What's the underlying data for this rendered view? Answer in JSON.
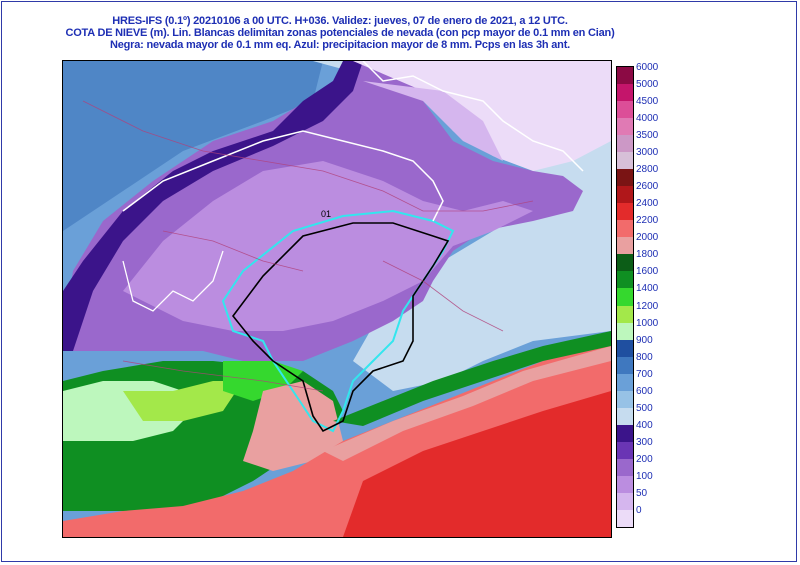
{
  "header": {
    "line1": "HRES-IFS (0.1º) 20210106 a 00 UTC.  H+036. Validez: jueves, 07 de enero de 2021,  a  12 UTC.",
    "line2": "COTA DE NIEVE (m). Lin. Blancas delimitan zonas potenciales de nevada (con pcp mayor de 0.1 mm en Cian)",
    "line3": "Negra: nevada mayor de 0.1 mm eq. Azul: precipitacion mayor de 8 mm. Pcps en las 3h ant."
  },
  "map": {
    "contour_label": "01"
  },
  "legend": {
    "levels": [
      {
        "label": "6000",
        "color": "#8b0a44"
      },
      {
        "label": "5000",
        "color": "#c4156b"
      },
      {
        "label": "4500",
        "color": "#dc4e98"
      },
      {
        "label": "4000",
        "color": "#e07ab4"
      },
      {
        "label": "3500",
        "color": "#cc98c6"
      },
      {
        "label": "3000",
        "color": "#d7c0d8"
      },
      {
        "label": "2800",
        "color": "#7a1414"
      },
      {
        "label": "2600",
        "color": "#b0171a"
      },
      {
        "label": "2400",
        "color": "#e32b2b"
      },
      {
        "label": "2200",
        "color": "#f26b6b"
      },
      {
        "label": "2000",
        "color": "#e9a0a0"
      },
      {
        "label": "1800",
        "color": "#0c5d17"
      },
      {
        "label": "1600",
        "color": "#0f8f22"
      },
      {
        "label": "1400",
        "color": "#35d82e"
      },
      {
        "label": "1200",
        "color": "#a3e84a"
      },
      {
        "label": "1000",
        "color": "#bdf7bd"
      },
      {
        "label": "900",
        "color": "#1f4fa0"
      },
      {
        "label": "800",
        "color": "#3f78bf"
      },
      {
        "label": "700",
        "color": "#6aa0d8"
      },
      {
        "label": "600",
        "color": "#97c2e6"
      },
      {
        "label": "500",
        "color": "#c6dcef"
      },
      {
        "label": "400",
        "color": "#3b148a"
      },
      {
        "label": "300",
        "color": "#6a35b4"
      },
      {
        "label": "200",
        "color": "#9a68cc"
      },
      {
        "label": "100",
        "color": "#bb8de0"
      },
      {
        "label": "50",
        "color": "#d5b6ee"
      },
      {
        "label": "0",
        "color": "#ecdcf8"
      }
    ]
  }
}
